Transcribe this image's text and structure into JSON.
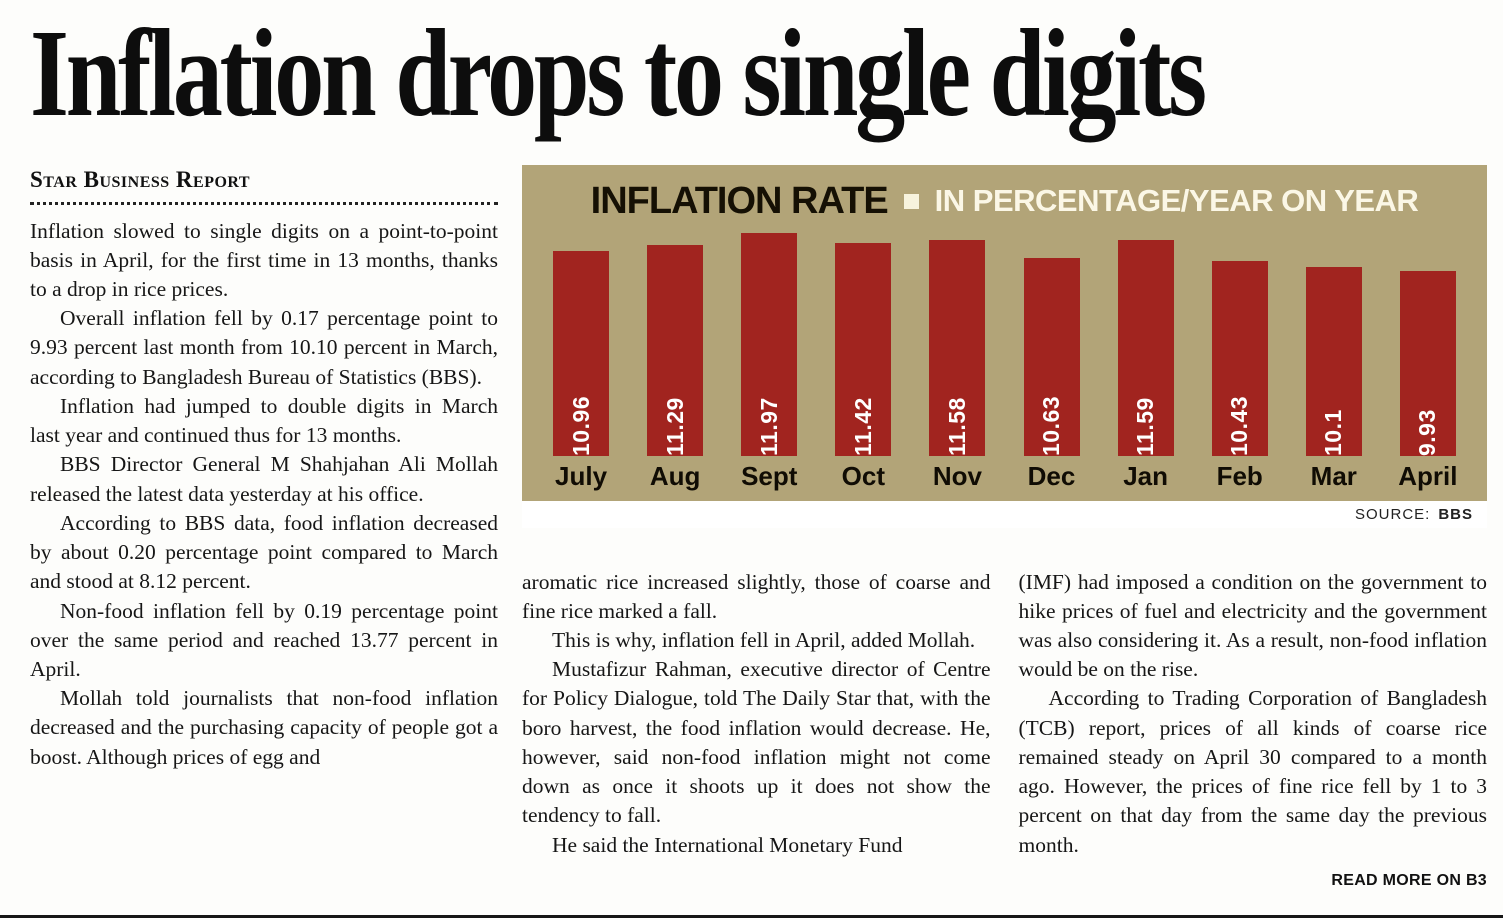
{
  "headline": "Inflation drops to single digits",
  "byline": "Star Business Report",
  "left_column": {
    "paragraphs": [
      "Inflation slowed to single digits on a point-to-point basis in April, for the first time in 13 months, thanks to a drop in rice prices.",
      "Overall inflation fell by 0.17 percentage point to 9.93 percent last month from 10.10 percent in March, according to Bangladesh Bureau of Statistics (BBS).",
      "Inflation had jumped to double digits in March last year and continued thus for 13 months.",
      "BBS Director General M Shahjahan Ali Mollah released the latest data yesterday at his office.",
      "According to BBS data, food inflation decreased by about 0.20 percentage point compared to March and stood at 8.12 percent.",
      "Non-food inflation fell by 0.19 percentage point over the same period and reached 13.77 percent in April.",
      "Mollah told journalists that non-food inflation decreased and the purchasing capacity of people got a boost. Although prices of egg and"
    ]
  },
  "middle_column": {
    "paragraphs": [
      "aromatic rice increased slightly, those of coarse and fine rice marked a fall.",
      "This is why, inflation fell in April, added Mollah.",
      "Mustafizur Rahman, executive director of Centre for Policy Dialogue, told The Daily Star that, with the boro harvest, the food inflation would decrease. He, however, said non-food inflation might not come down as once it shoots up it does not show the tendency to fall.",
      "He said the International Monetary Fund"
    ]
  },
  "right_column": {
    "paragraphs": [
      "(IMF) had imposed a condition on the government to hike prices of fuel and electricity and the government was also considering it. As a result, non-food inflation would be on the rise.",
      "According to Trading Corporation of Bangladesh (TCB) report, prices of all kinds of coarse rice remained steady on April 30 compared to a month ago. However, the prices of fine rice fell by 1 to 3 percent on that day from the same day the previous month."
    ],
    "read_more": "READ MORE ON B3"
  },
  "chart": {
    "title": "INFLATION RATE",
    "subtitle": "IN PERCENTAGE/YEAR ON YEAR",
    "source_label": "SOURCE:",
    "source_value": "BBS",
    "colors": {
      "background": "#b2a478",
      "bar": "#a1241f",
      "value_text": "#ffffff",
      "subtitle_text": "#fbf7e6"
    }
  },
  "chart_data": {
    "type": "bar",
    "categories": [
      "July",
      "Aug",
      "Sept",
      "Oct",
      "Nov",
      "Dec",
      "Jan",
      "Feb",
      "Mar",
      "April"
    ],
    "values": [
      10.96,
      11.29,
      11.97,
      11.42,
      11.58,
      10.63,
      11.59,
      10.43,
      10.1,
      9.93
    ],
    "title": "INFLATION RATE",
    "subtitle": "IN PERCENTAGE/YEAR ON YEAR",
    "xlabel": "",
    "ylabel": "",
    "ylim": [
      0,
      12
    ],
    "grid": false,
    "legend_position": "none",
    "source": "BBS"
  }
}
